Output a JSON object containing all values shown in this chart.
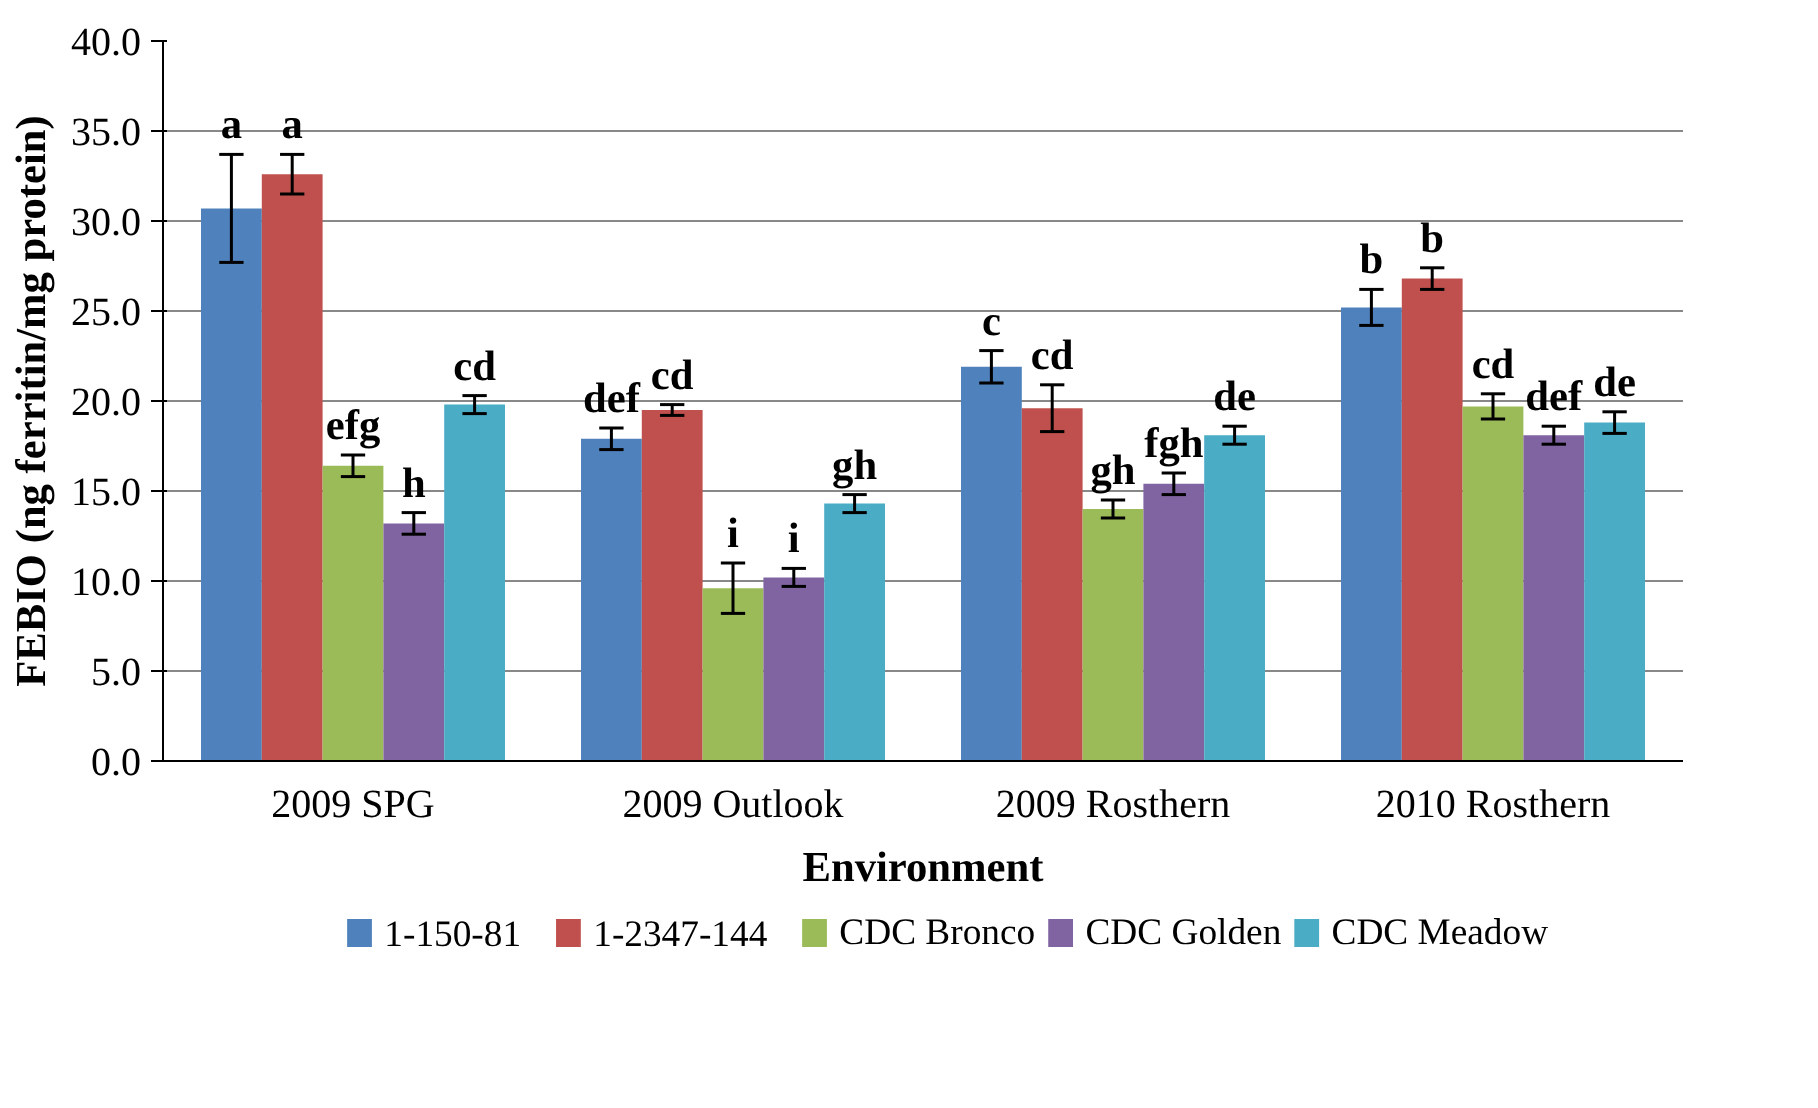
{
  "chart_data": {
    "type": "bar",
    "xlabel": "Environment",
    "ylabel": "FEBIO (ng ferritin/mg protein)",
    "categories": [
      "2009 SPG",
      "2009 Outlook",
      "2009 Rosthern",
      "2010 Rosthern"
    ],
    "ylim": [
      0,
      40
    ],
    "yticks": [
      {
        "value": 0,
        "label": "0.0"
      },
      {
        "value": 5,
        "label": "5.0"
      },
      {
        "value": 10,
        "label": "10.0"
      },
      {
        "value": 15,
        "label": "15.0"
      },
      {
        "value": 20,
        "label": "20.0"
      },
      {
        "value": 25,
        "label": "25.0"
      },
      {
        "value": 30,
        "label": "30.0"
      },
      {
        "value": 35,
        "label": "35.0"
      },
      {
        "value": 40,
        "label": "40.0"
      }
    ],
    "grid": "y",
    "legend": "bottom",
    "series": [
      {
        "name": "1-150-81",
        "color": "#4f81bd",
        "values": [
          30.7,
          17.9,
          21.9,
          25.2
        ],
        "errors": [
          3.0,
          0.6,
          0.9,
          1.0
        ],
        "value_labels": [
          "a",
          "def",
          "c",
          "b"
        ]
      },
      {
        "name": "1-2347-144",
        "color": "#c0504d",
        "values": [
          32.6,
          19.5,
          19.6,
          26.8
        ],
        "errors": [
          1.1,
          0.3,
          1.3,
          0.6
        ],
        "value_labels": [
          "a",
          "cd",
          "cd",
          "b"
        ]
      },
      {
        "name": "CDC Bronco",
        "color": "#9bbb59",
        "values": [
          16.4,
          9.6,
          14.0,
          19.7
        ],
        "errors": [
          0.6,
          1.4,
          0.5,
          0.7
        ],
        "value_labels": [
          "efg",
          "i",
          "gh",
          "cd"
        ]
      },
      {
        "name": "CDC Golden",
        "color": "#8064a2",
        "values": [
          13.2,
          10.2,
          15.4,
          18.1
        ],
        "errors": [
          0.6,
          0.5,
          0.6,
          0.5
        ],
        "value_labels": [
          "h",
          "i",
          "fgh",
          "def"
        ]
      },
      {
        "name": "CDC Meadow",
        "color": "#4bacc6",
        "values": [
          19.8,
          14.3,
          18.1,
          18.8
        ],
        "errors": [
          0.5,
          0.5,
          0.5,
          0.6
        ],
        "value_labels": [
          "cd",
          "gh",
          "de",
          "de"
        ]
      }
    ]
  }
}
